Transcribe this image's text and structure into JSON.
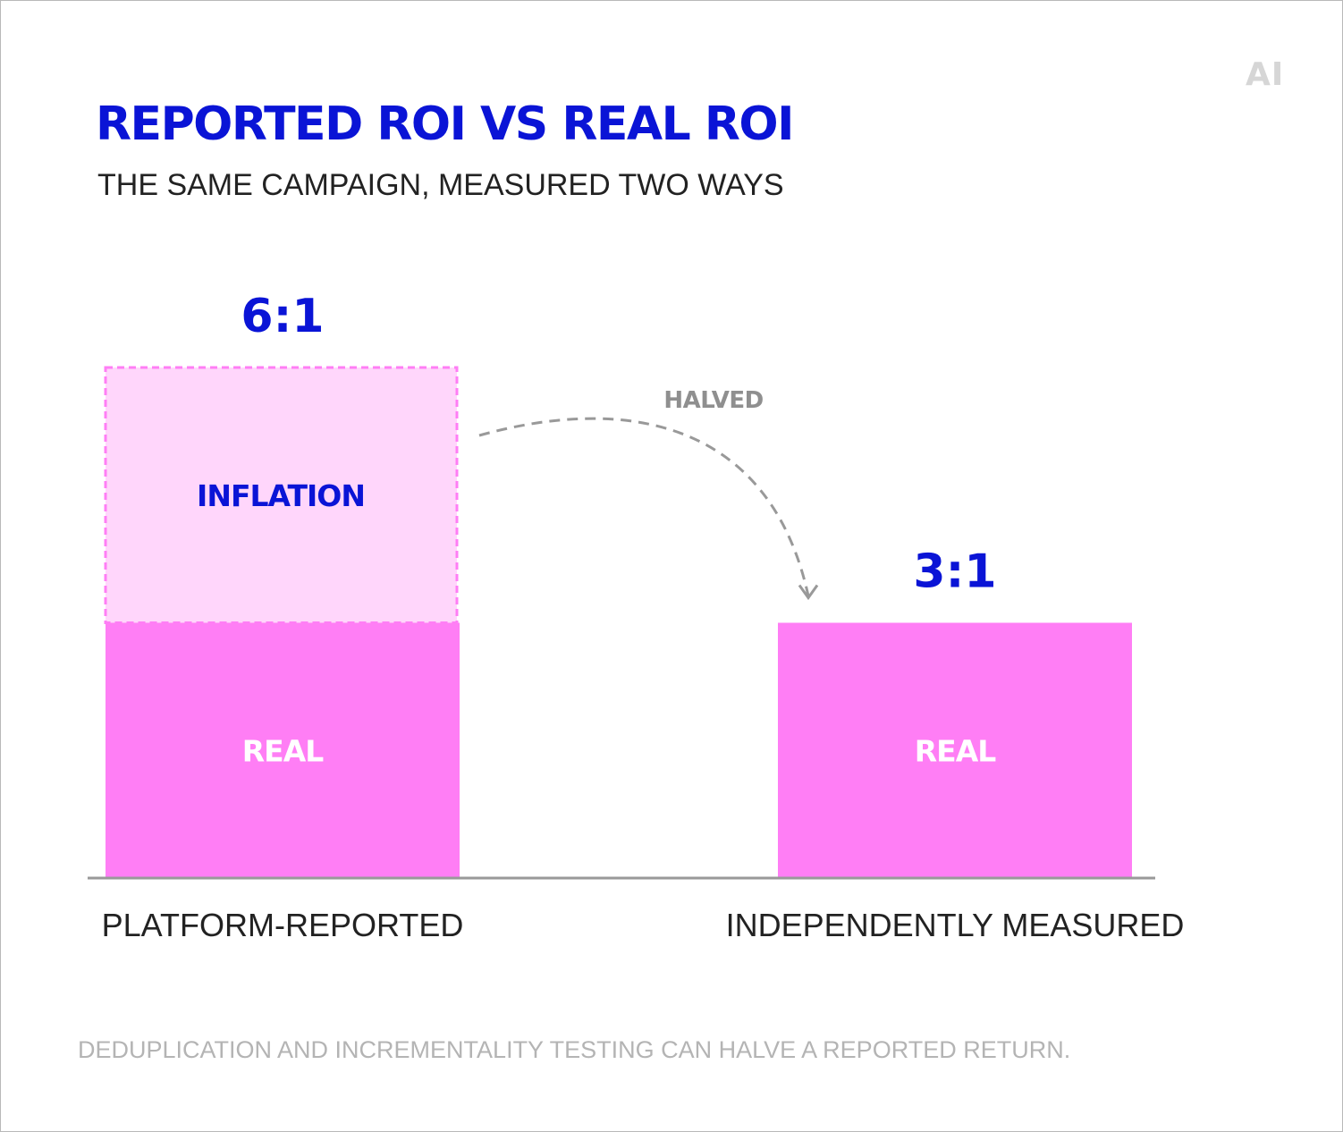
{
  "title": "REPORTED ROI VS REAL ROI",
  "subtitle": "THE SAME CAMPAIGN, MEASURED TWO WAYS",
  "brand": "AI",
  "footnote": "DEDUPLICATION AND INCREMENTALITY TESTING CAN HALVE A REPORTED RETURN.",
  "colors": {
    "accent": "#0a14d6",
    "real": "#ff7ef5",
    "inflation_fill": "#ffd6fb",
    "inflation_border": "#ff7ef5",
    "arrow": "#999999",
    "axis": "#999999",
    "segment_text_real": "#ffffff",
    "segment_text_inflation": "#0a14d6"
  },
  "chart_data": {
    "type": "bar",
    "stacked": true,
    "categories": [
      "PLATFORM-REPORTED",
      "INDEPENDENTLY MEASURED"
    ],
    "series": [
      {
        "name": "REAL",
        "values": [
          3,
          3
        ]
      },
      {
        "name": "INFLATION",
        "values": [
          3,
          0
        ]
      }
    ],
    "totals": [
      6,
      3
    ],
    "value_labels": [
      "6:1",
      "3:1"
    ],
    "ylim": [
      0,
      6
    ],
    "grid": false,
    "annotation": {
      "text": "HALVED",
      "from": "PLATFORM-REPORTED",
      "to": "INDEPENDENTLY MEASURED"
    }
  }
}
